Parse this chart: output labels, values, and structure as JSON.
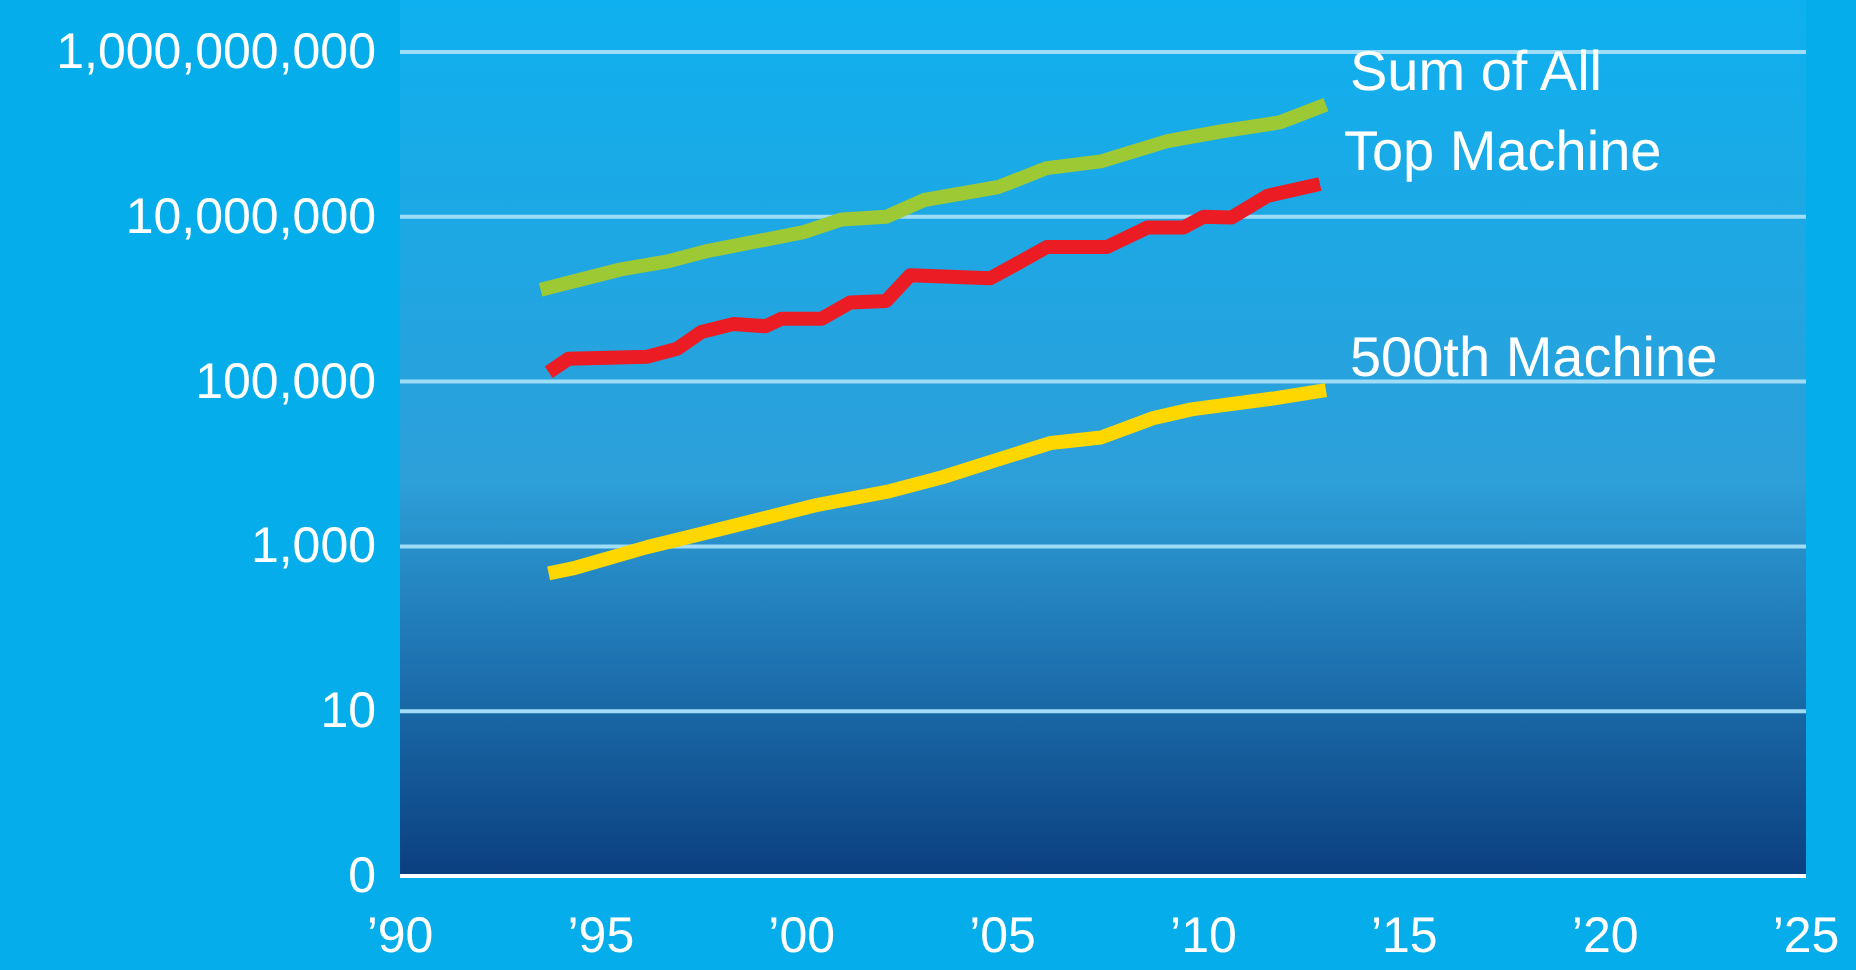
{
  "chart_data": {
    "type": "line",
    "log": "y",
    "grid": "y",
    "legend": false,
    "marker": "none",
    "line_style": "solid",
    "xlim": [
      1990,
      2025
    ],
    "xticks": [
      {
        "value": 1990,
        "label": "’90"
      },
      {
        "value": 1995,
        "label": "’95"
      },
      {
        "value": 2000,
        "label": "’00"
      },
      {
        "value": 2005,
        "label": "’05"
      },
      {
        "value": 2010,
        "label": "’10"
      },
      {
        "value": 2015,
        "label": "’15"
      },
      {
        "value": 2020,
        "label": "’20"
      },
      {
        "value": 2025,
        "label": "’25"
      }
    ],
    "ylim": [
      0.1,
      1000000000
    ],
    "yticks": [
      {
        "value": 0.1,
        "label": "0"
      },
      {
        "value": 10,
        "label": "10"
      },
      {
        "value": 1000,
        "label": "1,000"
      },
      {
        "value": 100000,
        "label": "100,000"
      },
      {
        "value": 10000000,
        "label": "10,000,000"
      },
      {
        "value": 1000000000,
        "label": "1,000,000,000"
      }
    ],
    "series": [
      {
        "name": "Sum of All",
        "color": "#9dc935",
        "x": [
          1993.5,
          1995.5,
          1996.7,
          1997.6,
          2000.05,
          2001,
          2002.1,
          2003.05,
          2004.9,
          2006.1,
          2007.45,
          2009.1,
          2010.5,
          2011.9,
          2013.05
        ],
        "values": [
          1300000,
          2300000,
          2900000,
          3800000,
          6500000,
          9300000,
          10000000,
          16000000,
          23000000,
          39000000,
          47000000,
          83000000,
          110000000,
          140000000,
          230000000
        ]
      },
      {
        "name": "Top Machine",
        "color": "#ec1c24",
        "x": [
          1993.7,
          1994.2,
          1996.15,
          1996.9,
          1997.5,
          1998.3,
          1999.1,
          1999.5,
          2000.5,
          2001.2,
          2002.1,
          2002.7,
          2004.7,
          2005.3,
          2006.1,
          2007.6,
          2008.6,
          2009.5,
          2010,
          2010.7,
          2011.6,
          2012.9
        ],
        "values": [
          130000,
          190000,
          200000,
          250000,
          400000,
          500000,
          470000,
          580000,
          580000,
          910000,
          950000,
          1950000,
          1800000,
          2600000,
          4300000,
          4300000,
          7400000,
          7400000,
          10000000,
          9800000,
          18000000,
          25000000
        ]
      },
      {
        "name": "500th Machine",
        "color": "#ffd700",
        "x": [
          1993.7,
          1994.3,
          1996.15,
          1997.45,
          2000.4,
          2002.2,
          2003.5,
          2004.8,
          2006.2,
          2007.45,
          2008.75,
          2009.7,
          2011.8,
          2013.05
        ],
        "values": [
          470,
          540,
          980,
          1400,
          3200,
          4700,
          6900,
          11000,
          18000,
          21000,
          36000,
          46000,
          63000,
          79000
        ]
      }
    ]
  }
}
